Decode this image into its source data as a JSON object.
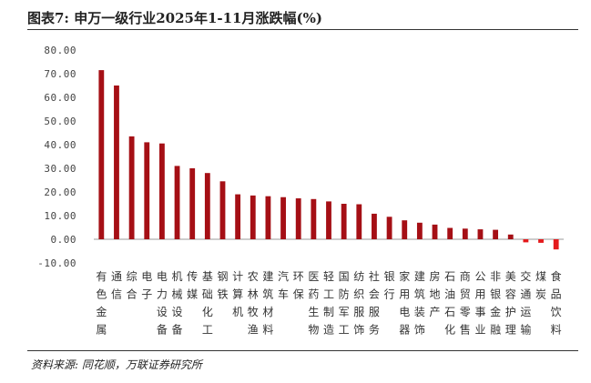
{
  "title": "图表7:  申万一级行业2025年1-11月涨跌幅(%)",
  "source": "资料来源:  同花顺，万联证券研究所",
  "colors": {
    "positive": "#a50f15",
    "negative": "#e41a1c"
  },
  "chart_data": {
    "type": "bar",
    "title": "图表7:  申万一级行业2025年1-11月涨跌幅(%)",
    "xlabel": "",
    "ylabel": "",
    "ylim": [
      -10,
      80
    ],
    "yticks": [
      -10,
      0,
      10,
      20,
      30,
      40,
      50,
      60,
      70,
      80
    ],
    "ytick_labels": [
      "-10.00",
      "0.00",
      "10.00",
      "20.00",
      "30.00",
      "40.00",
      "50.00",
      "60.00",
      "70.00",
      "80.00"
    ],
    "grid": false,
    "categories": [
      "有色金属",
      "通信",
      "综合",
      "电子",
      "电力设备",
      "机械设备",
      "传媒",
      "基础化工",
      "钢铁",
      "计算机",
      "农林牧渔",
      "建筑材料",
      "汽车",
      "环保",
      "医药生物",
      "轻工制造",
      "国防军工",
      "纺织服饰",
      "社会服务",
      "银行",
      "家用电器",
      "建筑装饰",
      "房地产",
      "石油石化",
      "商贸零售",
      "公用事业",
      "非银金融",
      "美容护理",
      "交通运输",
      "煤炭",
      "食品饮料"
    ],
    "values": [
      71.5,
      65.0,
      43.5,
      41.0,
      40.5,
      31.0,
      30.0,
      28.0,
      24.5,
      19.0,
      18.5,
      18.2,
      17.8,
      17.3,
      17.0,
      16.0,
      15.0,
      14.8,
      10.8,
      9.5,
      8.0,
      7.0,
      6.2,
      4.8,
      4.5,
      4.2,
      4.0,
      2.0,
      -1.3,
      -1.5,
      -4.3
    ]
  }
}
